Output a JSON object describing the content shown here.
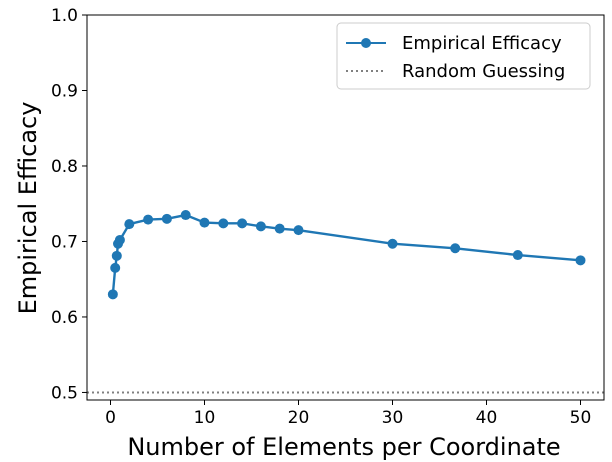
{
  "chart_data": {
    "type": "line",
    "xlabel": "Number of Elements per Coordinate",
    "ylabel": "Empirical Efficacy",
    "xlim": [
      -2.5,
      52.5
    ],
    "ylim": [
      0.49,
      1.0
    ],
    "xticks": [
      0,
      10,
      20,
      30,
      40,
      50
    ],
    "yticks": [
      0.5,
      0.6,
      0.7,
      0.8,
      0.9,
      1.0
    ],
    "ytick_labels": [
      "0.5",
      "0.6",
      "0.7",
      "0.8",
      "0.9",
      "1.0"
    ],
    "grid": false,
    "legend_position": "top-right",
    "series": [
      {
        "name": "Empirical Efficacy",
        "kind": "line-with-markers",
        "color": "#1f77b4",
        "x": [
          0.25,
          0.5,
          0.67,
          0.8,
          1.0,
          2.0,
          4.0,
          6.0,
          8.0,
          10.0,
          12.0,
          14.0,
          16.0,
          18.0,
          20.0,
          30.0,
          36.67,
          43.33,
          50.0
        ],
        "y": [
          0.63,
          0.665,
          0.681,
          0.697,
          0.702,
          0.723,
          0.729,
          0.73,
          0.735,
          0.725,
          0.724,
          0.724,
          0.72,
          0.717,
          0.715,
          0.697,
          0.691,
          0.682,
          0.675
        ]
      },
      {
        "name": "Random Guessing",
        "kind": "hline-dotted",
        "color": "#808080",
        "y": 0.5
      }
    ]
  }
}
